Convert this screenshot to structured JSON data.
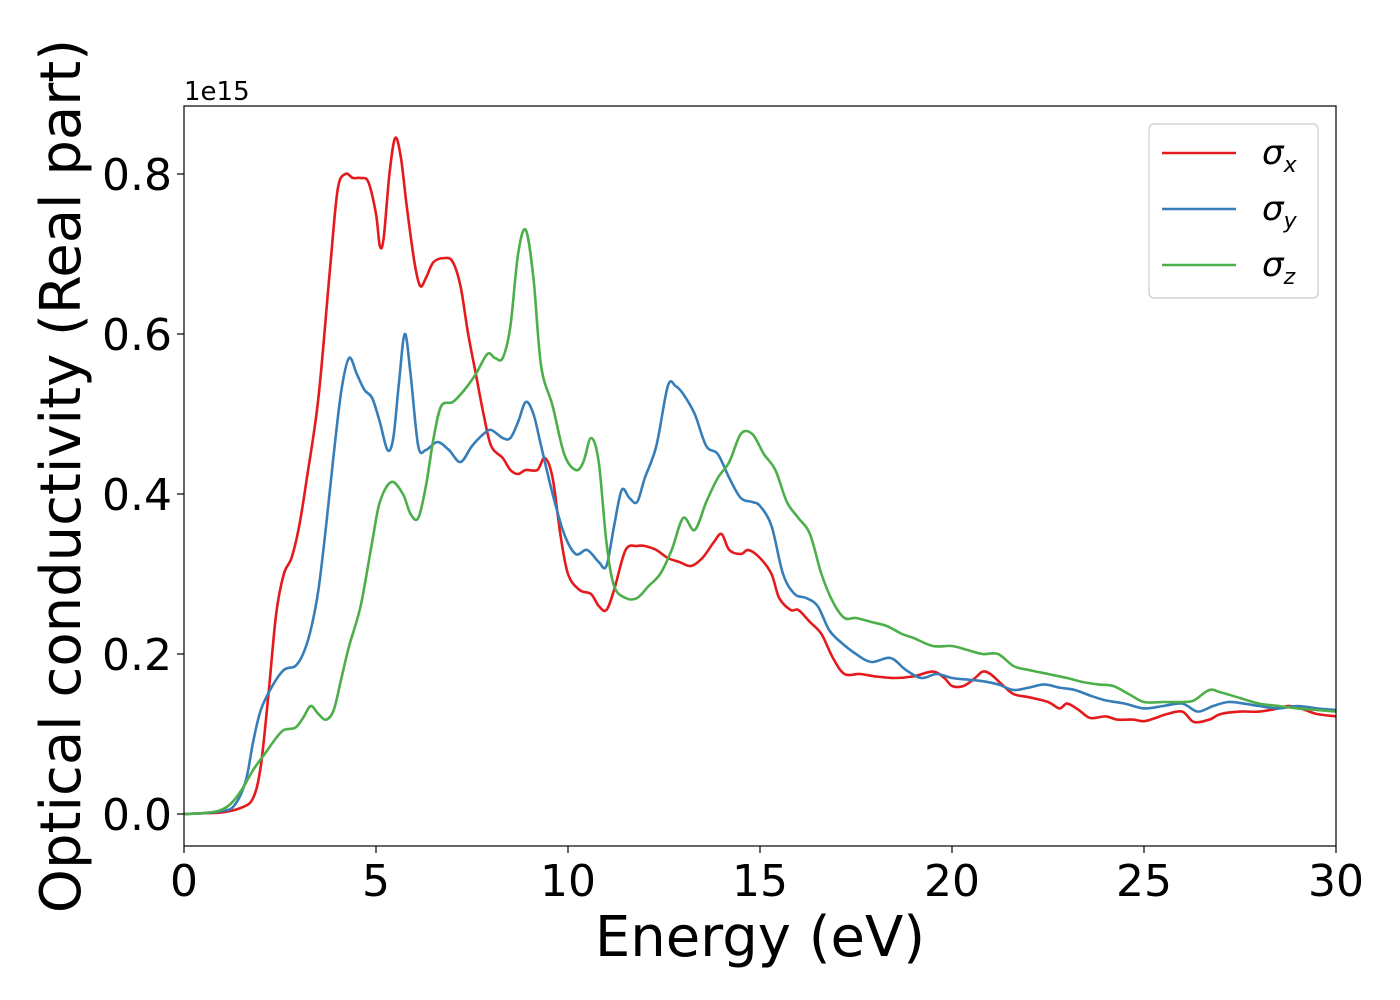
{
  "chart_data": {
    "type": "line",
    "xlabel": "Energy (eV)",
    "ylabel": "Optical conductivity (Real part)",
    "offset_text": "1e15",
    "xlim": [
      0,
      30
    ],
    "ylim": [
      -0.04,
      0.885
    ],
    "x_ticks": [
      0,
      5,
      10,
      15,
      20,
      25,
      30
    ],
    "y_ticks": [
      0.0,
      0.2,
      0.4,
      0.6,
      0.8
    ],
    "x_tick_labels": [
      "0",
      "5",
      "10",
      "15",
      "20",
      "25",
      "30"
    ],
    "y_tick_labels": [
      "0.0",
      "0.2",
      "0.4",
      "0.6",
      "0.8"
    ],
    "grid": false,
    "legend": "top-right",
    "series": [
      {
        "name": "σ",
        "subscript": "x",
        "color": "#e41a1c",
        "points": [
          [
            0,
            0
          ],
          [
            0.5,
            0.001
          ],
          [
            1.0,
            0.002
          ],
          [
            1.5,
            0.008
          ],
          [
            1.8,
            0.02
          ],
          [
            2.0,
            0.06
          ],
          [
            2.2,
            0.15
          ],
          [
            2.4,
            0.25
          ],
          [
            2.6,
            0.3
          ],
          [
            2.8,
            0.32
          ],
          [
            3.0,
            0.36
          ],
          [
            3.2,
            0.42
          ],
          [
            3.5,
            0.52
          ],
          [
            3.8,
            0.68
          ],
          [
            4.0,
            0.78
          ],
          [
            4.2,
            0.8
          ],
          [
            4.4,
            0.795
          ],
          [
            4.6,
            0.795
          ],
          [
            4.8,
            0.79
          ],
          [
            5.0,
            0.75
          ],
          [
            5.1,
            0.71
          ],
          [
            5.2,
            0.72
          ],
          [
            5.35,
            0.8
          ],
          [
            5.5,
            0.845
          ],
          [
            5.65,
            0.82
          ],
          [
            5.8,
            0.76
          ],
          [
            6.0,
            0.69
          ],
          [
            6.15,
            0.66
          ],
          [
            6.3,
            0.67
          ],
          [
            6.5,
            0.69
          ],
          [
            6.8,
            0.695
          ],
          [
            7.0,
            0.69
          ],
          [
            7.2,
            0.66
          ],
          [
            7.4,
            0.6
          ],
          [
            7.6,
            0.55
          ],
          [
            7.8,
            0.5
          ],
          [
            8.0,
            0.46
          ],
          [
            8.3,
            0.445
          ],
          [
            8.5,
            0.43
          ],
          [
            8.7,
            0.425
          ],
          [
            8.9,
            0.43
          ],
          [
            9.2,
            0.43
          ],
          [
            9.4,
            0.445
          ],
          [
            9.6,
            0.42
          ],
          [
            9.8,
            0.35
          ],
          [
            10.0,
            0.3
          ],
          [
            10.3,
            0.28
          ],
          [
            10.6,
            0.275
          ],
          [
            10.8,
            0.26
          ],
          [
            11.0,
            0.255
          ],
          [
            11.2,
            0.28
          ],
          [
            11.5,
            0.33
          ],
          [
            11.8,
            0.335
          ],
          [
            12.0,
            0.335
          ],
          [
            12.3,
            0.33
          ],
          [
            12.6,
            0.32
          ],
          [
            12.9,
            0.315
          ],
          [
            13.2,
            0.31
          ],
          [
            13.5,
            0.32
          ],
          [
            13.8,
            0.34
          ],
          [
            14.0,
            0.35
          ],
          [
            14.2,
            0.33
          ],
          [
            14.5,
            0.325
          ],
          [
            14.7,
            0.33
          ],
          [
            15.0,
            0.32
          ],
          [
            15.3,
            0.3
          ],
          [
            15.5,
            0.27
          ],
          [
            15.8,
            0.255
          ],
          [
            16.0,
            0.255
          ],
          [
            16.3,
            0.24
          ],
          [
            16.6,
            0.225
          ],
          [
            16.9,
            0.195
          ],
          [
            17.2,
            0.175
          ],
          [
            17.6,
            0.175
          ],
          [
            18.0,
            0.172
          ],
          [
            18.5,
            0.17
          ],
          [
            19.0,
            0.172
          ],
          [
            19.5,
            0.178
          ],
          [
            19.8,
            0.17
          ],
          [
            20.0,
            0.16
          ],
          [
            20.3,
            0.16
          ],
          [
            20.6,
            0.17
          ],
          [
            20.8,
            0.178
          ],
          [
            21.0,
            0.175
          ],
          [
            21.3,
            0.162
          ],
          [
            21.6,
            0.15
          ],
          [
            22.0,
            0.146
          ],
          [
            22.5,
            0.14
          ],
          [
            22.8,
            0.132
          ],
          [
            23.0,
            0.138
          ],
          [
            23.3,
            0.13
          ],
          [
            23.6,
            0.12
          ],
          [
            24.0,
            0.122
          ],
          [
            24.3,
            0.118
          ],
          [
            24.7,
            0.118
          ],
          [
            25.0,
            0.116
          ],
          [
            25.3,
            0.12
          ],
          [
            25.6,
            0.125
          ],
          [
            26.0,
            0.128
          ],
          [
            26.3,
            0.115
          ],
          [
            26.7,
            0.118
          ],
          [
            27.0,
            0.125
          ],
          [
            27.5,
            0.128
          ],
          [
            28.0,
            0.128
          ],
          [
            28.5,
            0.132
          ],
          [
            28.8,
            0.135
          ],
          [
            29.2,
            0.13
          ],
          [
            29.5,
            0.125
          ],
          [
            30.0,
            0.122
          ]
        ]
      },
      {
        "name": "σ",
        "subscript": "y",
        "color": "#377eb8",
        "points": [
          [
            0,
            0
          ],
          [
            0.5,
            0.001
          ],
          [
            1.0,
            0.004
          ],
          [
            1.3,
            0.01
          ],
          [
            1.6,
            0.04
          ],
          [
            1.8,
            0.09
          ],
          [
            2.0,
            0.13
          ],
          [
            2.3,
            0.16
          ],
          [
            2.6,
            0.18
          ],
          [
            2.9,
            0.185
          ],
          [
            3.1,
            0.2
          ],
          [
            3.3,
            0.23
          ],
          [
            3.5,
            0.28
          ],
          [
            3.7,
            0.36
          ],
          [
            3.9,
            0.45
          ],
          [
            4.1,
            0.53
          ],
          [
            4.3,
            0.57
          ],
          [
            4.5,
            0.55
          ],
          [
            4.7,
            0.53
          ],
          [
            4.9,
            0.52
          ],
          [
            5.1,
            0.49
          ],
          [
            5.3,
            0.455
          ],
          [
            5.45,
            0.47
          ],
          [
            5.6,
            0.54
          ],
          [
            5.75,
            0.6
          ],
          [
            5.9,
            0.55
          ],
          [
            6.1,
            0.46
          ],
          [
            6.3,
            0.455
          ],
          [
            6.6,
            0.465
          ],
          [
            6.9,
            0.455
          ],
          [
            7.2,
            0.44
          ],
          [
            7.5,
            0.46
          ],
          [
            7.8,
            0.475
          ],
          [
            8.0,
            0.48
          ],
          [
            8.3,
            0.47
          ],
          [
            8.5,
            0.47
          ],
          [
            8.7,
            0.49
          ],
          [
            8.9,
            0.515
          ],
          [
            9.1,
            0.5
          ],
          [
            9.3,
            0.46
          ],
          [
            9.6,
            0.4
          ],
          [
            9.9,
            0.35
          ],
          [
            10.2,
            0.325
          ],
          [
            10.5,
            0.33
          ],
          [
            10.8,
            0.315
          ],
          [
            11.0,
            0.31
          ],
          [
            11.2,
            0.36
          ],
          [
            11.4,
            0.405
          ],
          [
            11.6,
            0.395
          ],
          [
            11.8,
            0.39
          ],
          [
            12.0,
            0.42
          ],
          [
            12.3,
            0.46
          ],
          [
            12.6,
            0.535
          ],
          [
            12.8,
            0.535
          ],
          [
            13.0,
            0.525
          ],
          [
            13.3,
            0.5
          ],
          [
            13.6,
            0.46
          ],
          [
            13.9,
            0.45
          ],
          [
            14.2,
            0.42
          ],
          [
            14.5,
            0.395
          ],
          [
            14.8,
            0.39
          ],
          [
            15.0,
            0.385
          ],
          [
            15.3,
            0.36
          ],
          [
            15.6,
            0.3
          ],
          [
            15.9,
            0.275
          ],
          [
            16.2,
            0.27
          ],
          [
            16.5,
            0.26
          ],
          [
            16.8,
            0.23
          ],
          [
            17.1,
            0.215
          ],
          [
            17.5,
            0.2
          ],
          [
            17.9,
            0.19
          ],
          [
            18.4,
            0.195
          ],
          [
            18.8,
            0.18
          ],
          [
            19.2,
            0.17
          ],
          [
            19.6,
            0.175
          ],
          [
            20.0,
            0.17
          ],
          [
            20.4,
            0.168
          ],
          [
            20.8,
            0.166
          ],
          [
            21.2,
            0.162
          ],
          [
            21.6,
            0.155
          ],
          [
            22.0,
            0.158
          ],
          [
            22.4,
            0.162
          ],
          [
            22.8,
            0.158
          ],
          [
            23.2,
            0.155
          ],
          [
            23.6,
            0.148
          ],
          [
            24.0,
            0.142
          ],
          [
            24.5,
            0.138
          ],
          [
            25.0,
            0.132
          ],
          [
            25.5,
            0.135
          ],
          [
            26.0,
            0.138
          ],
          [
            26.4,
            0.128
          ],
          [
            26.8,
            0.135
          ],
          [
            27.2,
            0.14
          ],
          [
            27.6,
            0.138
          ],
          [
            28.0,
            0.135
          ],
          [
            28.5,
            0.132
          ],
          [
            29.0,
            0.135
          ],
          [
            29.5,
            0.132
          ],
          [
            30.0,
            0.13
          ]
        ]
      },
      {
        "name": "σ",
        "subscript": "z",
        "color": "#4daf4a",
        "points": [
          [
            0,
            0
          ],
          [
            0.5,
            0.001
          ],
          [
            0.9,
            0.004
          ],
          [
            1.2,
            0.012
          ],
          [
            1.5,
            0.03
          ],
          [
            1.8,
            0.055
          ],
          [
            2.1,
            0.075
          ],
          [
            2.4,
            0.095
          ],
          [
            2.6,
            0.105
          ],
          [
            2.9,
            0.108
          ],
          [
            3.1,
            0.12
          ],
          [
            3.3,
            0.135
          ],
          [
            3.5,
            0.125
          ],
          [
            3.7,
            0.118
          ],
          [
            3.9,
            0.13
          ],
          [
            4.1,
            0.17
          ],
          [
            4.3,
            0.21
          ],
          [
            4.6,
            0.26
          ],
          [
            4.9,
            0.34
          ],
          [
            5.1,
            0.39
          ],
          [
            5.4,
            0.415
          ],
          [
            5.7,
            0.4
          ],
          [
            5.9,
            0.375
          ],
          [
            6.1,
            0.37
          ],
          [
            6.3,
            0.41
          ],
          [
            6.5,
            0.47
          ],
          [
            6.7,
            0.51
          ],
          [
            7.0,
            0.515
          ],
          [
            7.3,
            0.53
          ],
          [
            7.6,
            0.55
          ],
          [
            7.9,
            0.575
          ],
          [
            8.1,
            0.57
          ],
          [
            8.3,
            0.57
          ],
          [
            8.5,
            0.61
          ],
          [
            8.7,
            0.7
          ],
          [
            8.9,
            0.73
          ],
          [
            9.1,
            0.67
          ],
          [
            9.3,
            0.56
          ],
          [
            9.6,
            0.51
          ],
          [
            9.9,
            0.45
          ],
          [
            10.2,
            0.43
          ],
          [
            10.4,
            0.44
          ],
          [
            10.6,
            0.47
          ],
          [
            10.8,
            0.44
          ],
          [
            11.0,
            0.34
          ],
          [
            11.2,
            0.285
          ],
          [
            11.5,
            0.27
          ],
          [
            11.8,
            0.27
          ],
          [
            12.1,
            0.285
          ],
          [
            12.4,
            0.3
          ],
          [
            12.7,
            0.33
          ],
          [
            13.0,
            0.37
          ],
          [
            13.3,
            0.355
          ],
          [
            13.6,
            0.39
          ],
          [
            13.9,
            0.42
          ],
          [
            14.2,
            0.44
          ],
          [
            14.5,
            0.475
          ],
          [
            14.8,
            0.475
          ],
          [
            15.1,
            0.45
          ],
          [
            15.4,
            0.43
          ],
          [
            15.7,
            0.39
          ],
          [
            16.0,
            0.37
          ],
          [
            16.3,
            0.35
          ],
          [
            16.6,
            0.3
          ],
          [
            16.9,
            0.265
          ],
          [
            17.2,
            0.245
          ],
          [
            17.5,
            0.245
          ],
          [
            17.9,
            0.24
          ],
          [
            18.3,
            0.235
          ],
          [
            18.7,
            0.225
          ],
          [
            19.0,
            0.22
          ],
          [
            19.5,
            0.21
          ],
          [
            20.0,
            0.21
          ],
          [
            20.4,
            0.205
          ],
          [
            20.8,
            0.2
          ],
          [
            21.2,
            0.2
          ],
          [
            21.6,
            0.185
          ],
          [
            22.0,
            0.18
          ],
          [
            22.5,
            0.175
          ],
          [
            23.0,
            0.17
          ],
          [
            23.4,
            0.165
          ],
          [
            23.8,
            0.162
          ],
          [
            24.2,
            0.16
          ],
          [
            24.6,
            0.15
          ],
          [
            25.0,
            0.14
          ],
          [
            25.5,
            0.14
          ],
          [
            26.0,
            0.14
          ],
          [
            26.3,
            0.142
          ],
          [
            26.7,
            0.155
          ],
          [
            27.0,
            0.152
          ],
          [
            27.5,
            0.145
          ],
          [
            28.0,
            0.138
          ],
          [
            28.5,
            0.135
          ],
          [
            29.0,
            0.132
          ],
          [
            29.5,
            0.13
          ],
          [
            30.0,
            0.128
          ]
        ]
      }
    ]
  }
}
